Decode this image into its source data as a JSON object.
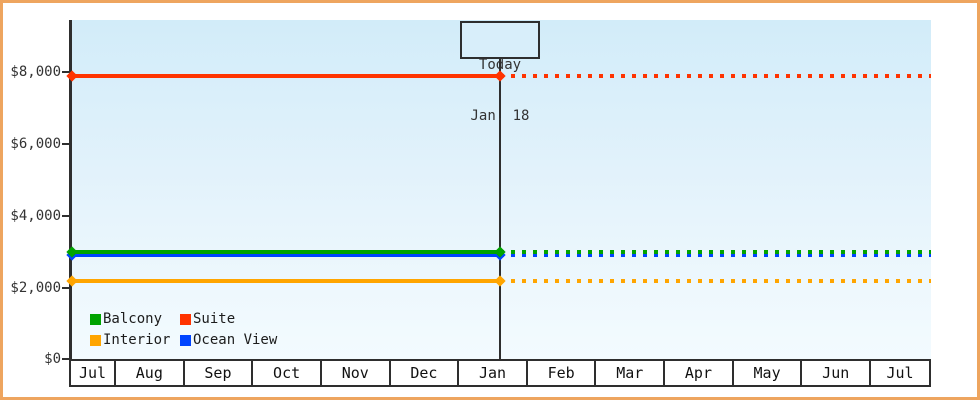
{
  "colors": {
    "frame_border": "#eea55f",
    "plot_bg_top": "#d2ecf9",
    "plot_bg_bottom": "#f3fbff",
    "axis": "#2e2e2e",
    "today_box_bg": "#d8eefa"
  },
  "chart_data": {
    "type": "line",
    "x_categories": [
      "Jul",
      "Aug",
      "Sep",
      "Oct",
      "Nov",
      "Dec",
      "Jan",
      "Feb",
      "Mar",
      "Apr",
      "May",
      "Jun",
      "Jul"
    ],
    "y_tick_labels": [
      "$8,000",
      "$6,000",
      "$4,000",
      "$2,000",
      "$0"
    ],
    "y_tick_values": [
      8000,
      6000,
      4000,
      2000,
      0
    ],
    "ylim": [
      0,
      9400
    ],
    "grid": "off",
    "today": {
      "label": "Today",
      "date": "Jan. 18",
      "x_category_index": 6,
      "style_before_today": "solid",
      "style_after_today": "dotted"
    },
    "series": [
      {
        "name": "Suite",
        "color": "#ff3300",
        "value": 7900
      },
      {
        "name": "Ocean View",
        "color": "#0044ff",
        "value": 2900
      },
      {
        "name": "Balcony",
        "color": "#00a300",
        "value": 2980
      },
      {
        "name": "Interior",
        "color": "#ffa500",
        "value": 2180
      }
    ],
    "legend": [
      "Balcony",
      "Suite",
      "Interior",
      "Ocean View"
    ],
    "legend_position": "inside-bottom-left"
  }
}
